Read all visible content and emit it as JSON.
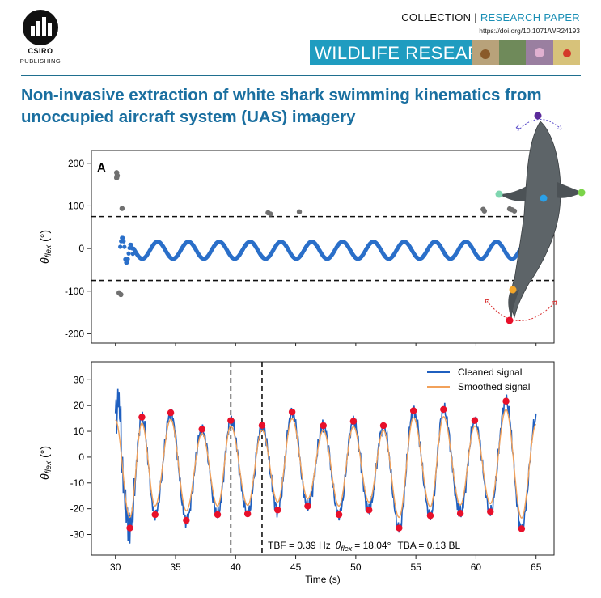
{
  "header": {
    "publisher_logo": "CSIRO",
    "publisher_sub": "PUBLISHING",
    "collection_label": "COLLECTION",
    "separator": "|",
    "paper_type": "RESEARCH PAPER",
    "doi": "https://doi.org/10.1071/WR24193",
    "journal": "WILDLIFE RESEARCH"
  },
  "article_title": "Non-invasive extraction of white shark swimming kinematics from unoccupied aircraft system (UAS) imagery",
  "colors": {
    "brand": "#1a6fa0",
    "banner": "#1f9cc0",
    "raw_series": "#2a6fc9",
    "outlier": "#707070",
    "cleaned": "#1f5fbf",
    "smoothed": "#f2a15a",
    "peaks": "#e8102a"
  },
  "chart_data": [
    {
      "type": "scatter",
      "panel_label": "A",
      "ylabel": "θflex (°)",
      "ylabel_main": "θ",
      "ylabel_sub": "flex",
      "ylabel_unit": "(°)",
      "xlim": [
        28,
        66.5
      ],
      "ylim": [
        -222,
        230
      ],
      "yticks": [
        200,
        100,
        0,
        -100,
        -200
      ],
      "threshold_lines": [
        75,
        -75
      ],
      "signal": {
        "start": 30.4,
        "end": 65.5,
        "freq_hz": 0.39,
        "amplitude": 20,
        "offset": -4
      },
      "outliers": [
        {
          "x": 30.1,
          "y": 178
        },
        {
          "x": 30.15,
          "y": 171
        },
        {
          "x": 30.1,
          "y": 166
        },
        {
          "x": 30.55,
          "y": 94
        },
        {
          "x": 30.3,
          "y": -104
        },
        {
          "x": 30.45,
          "y": -108
        },
        {
          "x": 42.7,
          "y": 84
        },
        {
          "x": 42.9,
          "y": 81
        },
        {
          "x": 45.3,
          "y": 86
        },
        {
          "x": 60.6,
          "y": 92
        },
        {
          "x": 60.7,
          "y": 88
        },
        {
          "x": 62.8,
          "y": 93
        },
        {
          "x": 63.0,
          "y": 91
        },
        {
          "x": 63.2,
          "y": 88
        }
      ],
      "shark_keypoints": [
        "head",
        "left-pectoral",
        "right-pectoral",
        "centroid",
        "caudal-peduncle",
        "tail-tip"
      ]
    },
    {
      "type": "line",
      "xlabel": "Time (s)",
      "ylabel": "θflex (°)",
      "ylabel_main": "θ",
      "ylabel_sub": "flex",
      "ylabel_unit": "(°)",
      "xlim": [
        28,
        66.5
      ],
      "ylim": [
        -38,
        37
      ],
      "xticks": [
        30,
        35,
        40,
        45,
        50,
        55,
        60,
        65
      ],
      "yticks": [
        30,
        20,
        10,
        0,
        -10,
        -20,
        -30
      ],
      "series": [
        {
          "name": "Cleaned signal"
        },
        {
          "name": "Smoothed signal"
        }
      ],
      "vertical_markers": [
        39.6,
        42.2
      ],
      "peaks": [
        {
          "x": 32.2,
          "y": 15.5
        },
        {
          "x": 34.6,
          "y": 17.2
        },
        {
          "x": 37.2,
          "y": 10.8
        },
        {
          "x": 39.6,
          "y": 14.2
        },
        {
          "x": 42.2,
          "y": 12.3
        },
        {
          "x": 44.7,
          "y": 17.5
        },
        {
          "x": 47.3,
          "y": 12.2
        },
        {
          "x": 49.8,
          "y": 13.9
        },
        {
          "x": 52.3,
          "y": 12.2
        },
        {
          "x": 54.8,
          "y": 18.0
        },
        {
          "x": 57.3,
          "y": 18.5
        },
        {
          "x": 59.9,
          "y": 14.2
        },
        {
          "x": 62.5,
          "y": 21.7
        }
      ],
      "troughs": [
        {
          "x": 31.2,
          "y": -27.5
        },
        {
          "x": 33.3,
          "y": -22.3
        },
        {
          "x": 35.9,
          "y": -24.5
        },
        {
          "x": 38.5,
          "y": -22.3
        },
        {
          "x": 41.0,
          "y": -22.0
        },
        {
          "x": 43.5,
          "y": -20.5
        },
        {
          "x": 46.0,
          "y": -19.0
        },
        {
          "x": 48.6,
          "y": -22.3
        },
        {
          "x": 51.1,
          "y": -20.5
        },
        {
          "x": 53.6,
          "y": -27.5
        },
        {
          "x": 56.2,
          "y": -22.7
        },
        {
          "x": 58.7,
          "y": -21.8
        },
        {
          "x": 61.2,
          "y": -21.2
        },
        {
          "x": 63.8,
          "y": -27.8
        }
      ],
      "annotation": {
        "tbf": "TBF = 0.39 Hz",
        "theta": "θ",
        "theta_sub": "flex",
        "theta_val": "= 18.04°",
        "tba": "TBA = 0.13 BL"
      }
    }
  ]
}
